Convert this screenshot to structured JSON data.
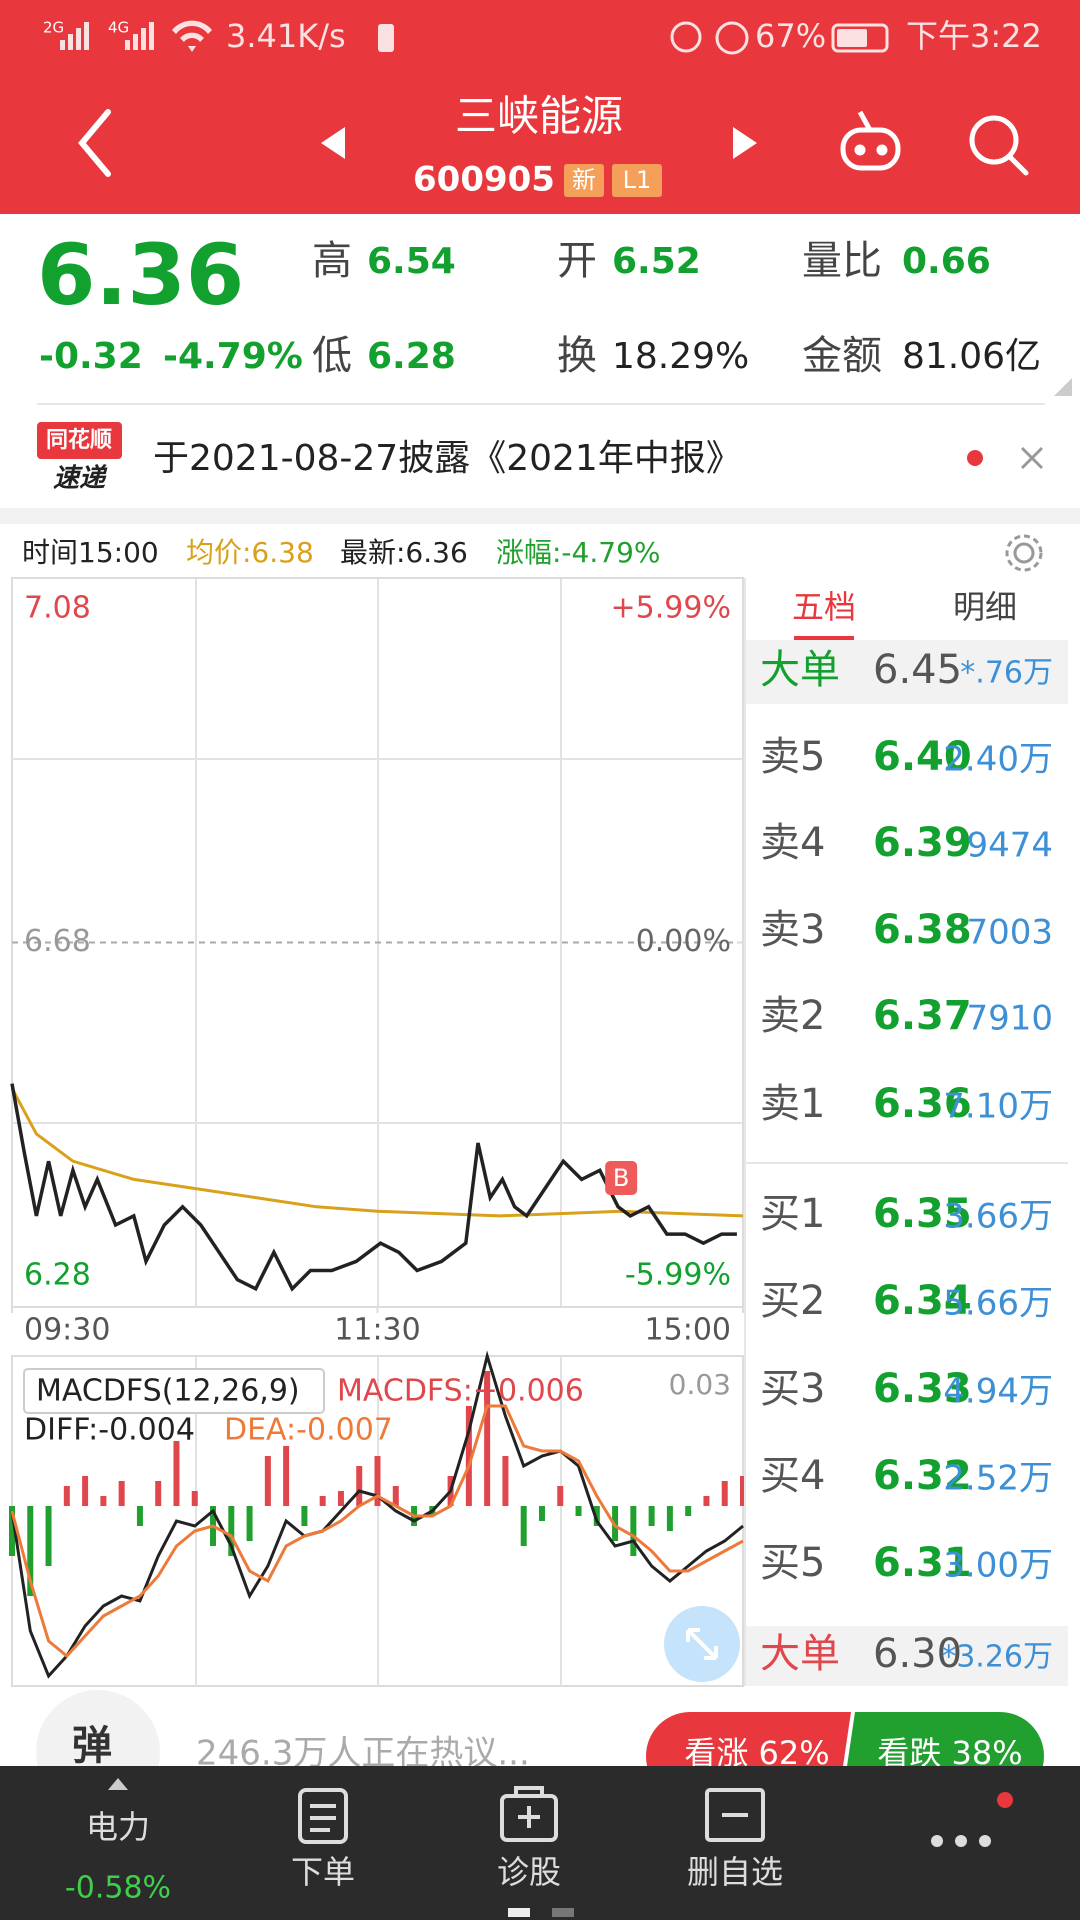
{
  "status_bar": {
    "signal_1": "2G",
    "signal_2": "4G",
    "speed": "3.41K/s",
    "battery": "67%",
    "time": "下午3:22"
  },
  "header": {
    "title": "三峡能源",
    "code": "600905",
    "badges": [
      "新",
      "L1"
    ]
  },
  "quote": {
    "price": "6.36",
    "change": "-0.32",
    "change_pct": "-4.79%",
    "fields": [
      {
        "label": "高",
        "value": "6.54"
      },
      {
        "label": "开",
        "value": "6.52"
      },
      {
        "label": "量比",
        "value": "0.66"
      },
      {
        "label": "低",
        "value": "6.28"
      },
      {
        "label": "换",
        "value": "18.29%"
      },
      {
        "label": "金额",
        "value": "81.06亿"
      }
    ]
  },
  "news": {
    "logo_top": "同花顺",
    "logo_bottom": "速递",
    "text": "于2021-08-27披露《2021年中报》"
  },
  "chart_data": [
    {
      "type": "line",
      "info": {
        "time": "时间15:00",
        "avg": "均价:6.38",
        "latest": "最新:6.36",
        "change": "涨幅:-4.79%"
      },
      "x": [
        0,
        4,
        8,
        12,
        16,
        20,
        24,
        28,
        34,
        40,
        44,
        50,
        56,
        62,
        68,
        74,
        80,
        86,
        92,
        98,
        105,
        113,
        121,
        127,
        133,
        141,
        149,
        153,
        157,
        161,
        165,
        169,
        175,
        181,
        187,
        193,
        199,
        203,
        209,
        215,
        221,
        227,
        233,
        238
      ],
      "xlim": [
        0,
        240
      ],
      "xticks": [
        {
          "value": 0,
          "label": "09:30"
        },
        {
          "value": 120,
          "label": "11:30"
        },
        {
          "value": 240,
          "label": "15:00"
        }
      ],
      "ylim": [
        6.28,
        7.08
      ],
      "yticks": [
        6.28,
        6.68,
        7.08
      ],
      "y2lim": [
        -5.99,
        5.99
      ],
      "y2ticks": [
        {
          "value": -5.99,
          "label": "-5.99%"
        },
        {
          "value": 0,
          "label": "0.00%"
        },
        {
          "value": 5.99,
          "label": "+5.99%"
        }
      ],
      "series": [
        {
          "color": "#222222",
          "values": [
            6.525,
            6.45,
            6.38,
            6.44,
            6.38,
            6.43,
            6.39,
            6.42,
            6.37,
            6.38,
            6.33,
            6.37,
            6.39,
            6.37,
            6.34,
            6.31,
            6.3,
            6.34,
            6.3,
            6.32,
            6.32,
            6.33,
            6.35,
            6.34,
            6.32,
            6.33,
            6.35,
            6.46,
            6.4,
            6.42,
            6.39,
            6.38,
            6.41,
            6.44,
            6.42,
            6.43,
            6.39,
            6.38,
            6.39,
            6.36,
            6.36,
            6.35,
            6.36,
            6.36
          ]
        },
        {
          "color": "#d9a01a",
          "x": [
            0,
            8,
            20,
            40,
            60,
            80,
            100,
            120,
            160,
            200,
            240
          ],
          "values": [
            6.52,
            6.47,
            6.44,
            6.42,
            6.41,
            6.4,
            6.39,
            6.385,
            6.38,
            6.385,
            6.38
          ]
        }
      ],
      "annotations": [
        {
          "text": "B"
        }
      ]
    },
    {
      "type": "macd",
      "title": "MACDFS(12,26,9)",
      "x": [
        0,
        6,
        12,
        18,
        24,
        30,
        36,
        42,
        48,
        54,
        60,
        66,
        72,
        78,
        84,
        90,
        96,
        102,
        108,
        114,
        120,
        126,
        132,
        138,
        144,
        150,
        156,
        162,
        168,
        174,
        180,
        186,
        192,
        198,
        204,
        210,
        216,
        222,
        228,
        234,
        240
      ],
      "xlim": [
        0,
        240
      ],
      "ylim": [
        -0.036,
        0.03
      ],
      "yticks": [
        0.03
      ],
      "series": [
        {
          "name": "MACDFS:+0.006",
          "up_color": "#e0474c",
          "down_color": "#22a02f",
          "values": [
            -0.01,
            -0.018,
            -0.012,
            0.004,
            0.006,
            0.002,
            0.005,
            -0.004,
            0.005,
            0.013,
            0.003,
            -0.008,
            -0.01,
            -0.007,
            0.01,
            0.012,
            -0.004,
            0.002,
            0.003,
            0.008,
            0.01,
            0.004,
            -0.004,
            -0.002,
            0.006,
            0.02,
            0.027,
            0.01,
            -0.008,
            -0.003,
            0.004,
            -0.002,
            -0.004,
            -0.007,
            -0.01,
            -0.004,
            -0.005,
            -0.002,
            0.002,
            0.005,
            0.006
          ]
        },
        {
          "name": "DIFF:-0.004",
          "color": "#222222",
          "values": [
            -0.001,
            -0.025,
            -0.034,
            -0.03,
            -0.024,
            -0.02,
            -0.018,
            -0.019,
            -0.01,
            -0.003,
            -0.004,
            -0.001,
            -0.008,
            -0.018,
            -0.012,
            -0.003,
            -0.006,
            -0.005,
            -0.001,
            0.003,
            0.002,
            -0.001,
            -0.003,
            -0.001,
            0.003,
            0.015,
            0.03,
            0.018,
            0.008,
            0.01,
            0.011,
            0.008,
            -0.003,
            -0.008,
            -0.007,
            -0.012,
            -0.015,
            -0.012,
            -0.009,
            -0.007,
            -0.004
          ]
        },
        {
          "name": "DEA:-0.007",
          "color": "#ee7a3a",
          "values": [
            -0.001,
            -0.015,
            -0.027,
            -0.03,
            -0.026,
            -0.022,
            -0.02,
            -0.018,
            -0.014,
            -0.008,
            -0.005,
            -0.004,
            -0.006,
            -0.013,
            -0.015,
            -0.008,
            -0.006,
            -0.005,
            -0.003,
            0.0,
            0.002,
            0.0,
            -0.002,
            -0.002,
            0.0,
            0.008,
            0.02,
            0.02,
            0.012,
            0.011,
            0.011,
            0.009,
            0.002,
            -0.004,
            -0.006,
            -0.009,
            -0.013,
            -0.013,
            -0.011,
            -0.009,
            -0.007
          ]
        }
      ]
    }
  ],
  "order_book": {
    "tabs": [
      "五档",
      "明细"
    ],
    "rows": [
      {
        "label": "大单",
        "price": "6.45",
        "volume": "*.76万"
      },
      {
        "label": "卖5",
        "price": "6.40",
        "volume": "2.40万"
      },
      {
        "label": "卖4",
        "price": "6.39",
        "volume": "9474"
      },
      {
        "label": "卖3",
        "price": "6.38",
        "volume": "7003"
      },
      {
        "label": "卖2",
        "price": "6.37",
        "volume": "7910"
      },
      {
        "label": "卖1",
        "price": "6.36",
        "volume": "7.10万"
      },
      {
        "label": "买1",
        "price": "6.35",
        "volume": "3.66万"
      },
      {
        "label": "买2",
        "price": "6.34",
        "volume": "5.66万"
      },
      {
        "label": "买3",
        "price": "6.33",
        "volume": "4.94万"
      },
      {
        "label": "买4",
        "price": "6.32",
        "volume": "2.52万"
      },
      {
        "label": "买5",
        "price": "6.31",
        "volume": "3.00万"
      },
      {
        "label": "大单",
        "price": "6.30",
        "volume": "*3.26万"
      }
    ]
  },
  "comments": {
    "badge": "弹",
    "text": "246.3万人正在热议...",
    "bull": "看涨 62%",
    "bear": "看跌 38%"
  },
  "nav": {
    "sector": "电力",
    "sector_change": "-0.58%",
    "items": [
      "下单",
      "诊股",
      "删自选"
    ]
  }
}
